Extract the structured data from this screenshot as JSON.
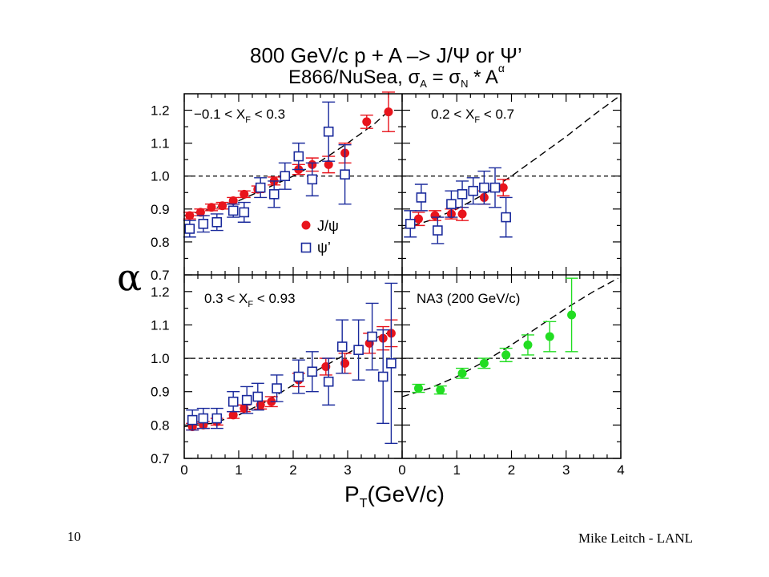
{
  "title_line1": "800 GeV/c p + A –> J/Ψ or Ψ’",
  "title_line2": "E866/NuSea, σ",
  "title_line2_eq_parts": {
    "sub_A": "A",
    "eq": " = σ",
    "sub_N": "N",
    "times": " * A",
    "sup_alpha": "α"
  },
  "y_axis_title": "α",
  "x_axis_title": "P",
  "x_axis_title_sub": "T",
  "x_axis_title_unit": "(GeV/c)",
  "y_tick_labels": [
    "0.7",
    "0.8",
    "0.9",
    "1.0",
    "1.1",
    "1.2"
  ],
  "x_tick_labels": [
    "0",
    "1",
    "2",
    "3",
    "4"
  ],
  "legend": {
    "jpsi": "J/ψ",
    "psiprime": "ψ’"
  },
  "colors": {
    "jpsi": "#e8141c",
    "psiprime": "#1a2a9c",
    "na3": "#22dd22",
    "axis": "#000000"
  },
  "footer": {
    "slide_number": "10",
    "credit": "Mike Leitch - LANL"
  },
  "chart_data": [
    {
      "type": "scatter",
      "panel": "top-left",
      "label": "−0.1 < X",
      "label_sub": "F",
      "label_tail": " < 0.3",
      "xlim": [
        0,
        4
      ],
      "ylim": [
        0.7,
        1.25
      ],
      "reference_line": 1.0,
      "fit_curve": [
        [
          0,
          0.88
        ],
        [
          0.5,
          0.9
        ],
        [
          1,
          0.925
        ],
        [
          1.5,
          0.962
        ],
        [
          2,
          1.0
        ],
        [
          2.5,
          1.045
        ],
        [
          3,
          1.1
        ],
        [
          3.5,
          1.16
        ],
        [
          3.7,
          1.19
        ]
      ],
      "series": [
        {
          "name": "J/ψ",
          "marker": "filled-circle",
          "points": [
            {
              "x": 0.1,
              "y": 0.88,
              "err": 0.01
            },
            {
              "x": 0.3,
              "y": 0.89,
              "err": 0.01
            },
            {
              "x": 0.5,
              "y": 0.905,
              "err": 0.01
            },
            {
              "x": 0.7,
              "y": 0.91,
              "err": 0.01
            },
            {
              "x": 0.9,
              "y": 0.925,
              "err": 0.01
            },
            {
              "x": 1.1,
              "y": 0.945,
              "err": 0.01
            },
            {
              "x": 1.35,
              "y": 0.96,
              "err": 0.01
            },
            {
              "x": 1.65,
              "y": 0.985,
              "err": 0.012
            },
            {
              "x": 2.1,
              "y": 1.02,
              "err": 0.015
            },
            {
              "x": 2.35,
              "y": 1.035,
              "err": 0.02
            },
            {
              "x": 2.65,
              "y": 1.035,
              "err": 0.025
            },
            {
              "x": 2.95,
              "y": 1.07,
              "err": 0.03
            },
            {
              "x": 3.35,
              "y": 1.165,
              "err": 0.02
            },
            {
              "x": 3.75,
              "y": 1.195,
              "err": 0.06
            }
          ]
        },
        {
          "name": "ψ’",
          "marker": "open-square",
          "points": [
            {
              "x": 0.1,
              "y": 0.84,
              "err": 0.025
            },
            {
              "x": 0.35,
              "y": 0.855,
              "err": 0.025
            },
            {
              "x": 0.6,
              "y": 0.86,
              "err": 0.025
            },
            {
              "x": 0.9,
              "y": 0.895,
              "err": 0.02
            },
            {
              "x": 1.1,
              "y": 0.89,
              "err": 0.03
            },
            {
              "x": 1.4,
              "y": 0.965,
              "err": 0.03
            },
            {
              "x": 1.65,
              "y": 0.945,
              "err": 0.04
            },
            {
              "x": 1.85,
              "y": 1.0,
              "err": 0.04
            },
            {
              "x": 2.1,
              "y": 1.06,
              "err": 0.04
            },
            {
              "x": 2.35,
              "y": 0.99,
              "err": 0.05
            },
            {
              "x": 2.65,
              "y": 1.135,
              "err": 0.09
            },
            {
              "x": 2.95,
              "y": 1.005,
              "err": 0.09
            }
          ]
        }
      ]
    },
    {
      "type": "scatter",
      "panel": "top-right",
      "label": "0.2 < X",
      "label_sub": "F",
      "label_tail": " < 0.7",
      "xlim": [
        0,
        4
      ],
      "ylim": [
        0.7,
        1.25
      ],
      "reference_line": 1.0,
      "fit_curve": [
        [
          0,
          0.84
        ],
        [
          0.5,
          0.865
        ],
        [
          1,
          0.9
        ],
        [
          1.5,
          0.945
        ],
        [
          2,
          1.0
        ],
        [
          2.5,
          1.06
        ],
        [
          3,
          1.12
        ],
        [
          3.5,
          1.185
        ],
        [
          3.95,
          1.24
        ]
      ],
      "series": [
        {
          "name": "J/ψ",
          "marker": "filled-circle",
          "points": [
            {
              "x": 0.3,
              "y": 0.87,
              "err": 0.02
            },
            {
              "x": 0.6,
              "y": 0.88,
              "err": 0.015
            },
            {
              "x": 0.9,
              "y": 0.885,
              "err": 0.015
            },
            {
              "x": 1.1,
              "y": 0.885,
              "err": 0.02
            },
            {
              "x": 1.5,
              "y": 0.935,
              "err": 0.02
            },
            {
              "x": 1.85,
              "y": 0.965,
              "err": 0.025
            }
          ]
        },
        {
          "name": "ψ’",
          "marker": "open-square",
          "points": [
            {
              "x": 0.15,
              "y": 0.855,
              "err": 0.04
            },
            {
              "x": 0.35,
              "y": 0.935,
              "err": 0.04
            },
            {
              "x": 0.65,
              "y": 0.835,
              "err": 0.04
            },
            {
              "x": 0.9,
              "y": 0.915,
              "err": 0.04
            },
            {
              "x": 1.1,
              "y": 0.945,
              "err": 0.04
            },
            {
              "x": 1.3,
              "y": 0.955,
              "err": 0.04
            },
            {
              "x": 1.5,
              "y": 0.965,
              "err": 0.05
            },
            {
              "x": 1.7,
              "y": 0.965,
              "err": 0.06
            },
            {
              "x": 1.9,
              "y": 0.875,
              "err": 0.06
            }
          ]
        }
      ]
    },
    {
      "type": "scatter",
      "panel": "bottom-left",
      "label": "0.3 < X",
      "label_sub": "F",
      "label_tail": " < 0.93",
      "xlim": [
        0,
        4
      ],
      "ylim": [
        0.7,
        1.25
      ],
      "reference_line": 1.0,
      "fit_curve": [
        [
          0,
          0.795
        ],
        [
          0.5,
          0.805
        ],
        [
          1,
          0.83
        ],
        [
          1.5,
          0.87
        ],
        [
          2,
          0.92
        ],
        [
          2.5,
          0.97
        ],
        [
          3,
          1.015
        ],
        [
          3.5,
          1.06
        ],
        [
          3.8,
          1.08
        ]
      ],
      "series": [
        {
          "name": "J/ψ",
          "marker": "filled-circle",
          "points": [
            {
              "x": 0.15,
              "y": 0.795,
              "err": 0.01
            },
            {
              "x": 0.35,
              "y": 0.8,
              "err": 0.01
            },
            {
              "x": 0.6,
              "y": 0.81,
              "err": 0.01
            },
            {
              "x": 0.9,
              "y": 0.83,
              "err": 0.01
            },
            {
              "x": 1.1,
              "y": 0.85,
              "err": 0.01
            },
            {
              "x": 1.4,
              "y": 0.86,
              "err": 0.012
            },
            {
              "x": 1.6,
              "y": 0.87,
              "err": 0.015
            },
            {
              "x": 2.1,
              "y": 0.935,
              "err": 0.02
            },
            {
              "x": 2.6,
              "y": 0.975,
              "err": 0.025
            },
            {
              "x": 2.95,
              "y": 0.985,
              "err": 0.03
            },
            {
              "x": 3.4,
              "y": 1.045,
              "err": 0.03
            },
            {
              "x": 3.65,
              "y": 1.06,
              "err": 0.035
            },
            {
              "x": 3.8,
              "y": 1.075,
              "err": 0.04
            }
          ]
        },
        {
          "name": "ψ’",
          "marker": "open-square",
          "points": [
            {
              "x": 0.15,
              "y": 0.815,
              "err": 0.03
            },
            {
              "x": 0.35,
              "y": 0.82,
              "err": 0.03
            },
            {
              "x": 0.6,
              "y": 0.82,
              "err": 0.03
            },
            {
              "x": 0.9,
              "y": 0.87,
              "err": 0.03
            },
            {
              "x": 1.15,
              "y": 0.875,
              "err": 0.04
            },
            {
              "x": 1.35,
              "y": 0.885,
              "err": 0.04
            },
            {
              "x": 1.7,
              "y": 0.91,
              "err": 0.04
            },
            {
              "x": 2.1,
              "y": 0.945,
              "err": 0.05
            },
            {
              "x": 2.35,
              "y": 0.96,
              "err": 0.06
            },
            {
              "x": 2.65,
              "y": 0.93,
              "err": 0.07
            },
            {
              "x": 2.9,
              "y": 1.035,
              "err": 0.08
            },
            {
              "x": 3.2,
              "y": 1.025,
              "err": 0.09
            },
            {
              "x": 3.45,
              "y": 1.065,
              "err": 0.1
            },
            {
              "x": 3.65,
              "y": 0.945,
              "err": 0.14
            },
            {
              "x": 3.8,
              "y": 0.985,
              "err": 0.24
            }
          ]
        }
      ]
    },
    {
      "type": "scatter",
      "panel": "bottom-right",
      "label": "NA3 (200 GeV/c)",
      "xlim": [
        0,
        4
      ],
      "ylim": [
        0.7,
        1.25
      ],
      "reference_line": 1.0,
      "fit_curve": [
        [
          0,
          0.885
        ],
        [
          0.5,
          0.91
        ],
        [
          1,
          0.945
        ],
        [
          1.5,
          0.99
        ],
        [
          2,
          1.04
        ],
        [
          2.5,
          1.095
        ],
        [
          3,
          1.15
        ],
        [
          3.5,
          1.2
        ],
        [
          3.95,
          1.24
        ]
      ],
      "series": [
        {
          "name": "NA3",
          "marker": "filled-circle",
          "points": [
            {
              "x": 0.3,
              "y": 0.91,
              "err": 0.012
            },
            {
              "x": 0.7,
              "y": 0.905,
              "err": 0.012
            },
            {
              "x": 1.1,
              "y": 0.955,
              "err": 0.015
            },
            {
              "x": 1.5,
              "y": 0.985,
              "err": 0.015
            },
            {
              "x": 1.9,
              "y": 1.01,
              "err": 0.02
            },
            {
              "x": 2.3,
              "y": 1.04,
              "err": 0.03
            },
            {
              "x": 2.7,
              "y": 1.065,
              "err": 0.045
            },
            {
              "x": 3.1,
              "y": 1.13,
              "err": 0.11
            }
          ]
        }
      ]
    }
  ]
}
